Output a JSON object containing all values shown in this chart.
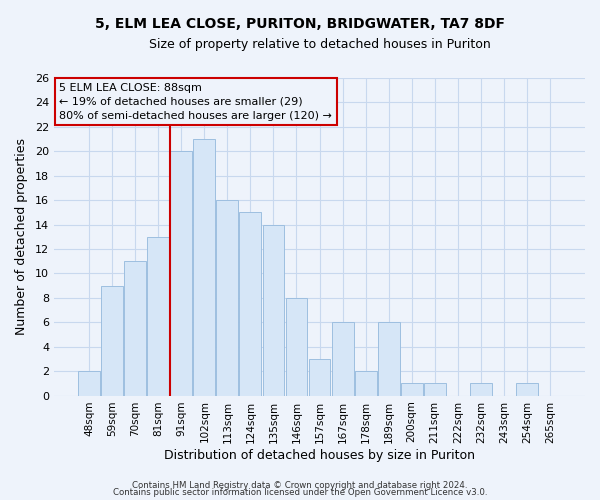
{
  "title": "5, ELM LEA CLOSE, PURITON, BRIDGWATER, TA7 8DF",
  "subtitle": "Size of property relative to detached houses in Puriton",
  "xlabel": "Distribution of detached houses by size in Puriton",
  "ylabel": "Number of detached properties",
  "bar_labels": [
    "48sqm",
    "59sqm",
    "70sqm",
    "81sqm",
    "91sqm",
    "102sqm",
    "113sqm",
    "124sqm",
    "135sqm",
    "146sqm",
    "157sqm",
    "167sqm",
    "178sqm",
    "189sqm",
    "200sqm",
    "211sqm",
    "222sqm",
    "232sqm",
    "243sqm",
    "254sqm",
    "265sqm"
  ],
  "bar_values": [
    2,
    9,
    11,
    13,
    20,
    21,
    16,
    15,
    14,
    8,
    3,
    6,
    2,
    6,
    1,
    1,
    0,
    1,
    0,
    1,
    0
  ],
  "bar_color": "#d6e6f7",
  "bar_edge_color": "#9dbfe0",
  "vline_index": 4,
  "vline_color": "#cc0000",
  "ylim": [
    0,
    26
  ],
  "yticks": [
    0,
    2,
    4,
    6,
    8,
    10,
    12,
    14,
    16,
    18,
    20,
    22,
    24,
    26
  ],
  "annotation_title": "5 ELM LEA CLOSE: 88sqm",
  "annotation_line1": "← 19% of detached houses are smaller (29)",
  "annotation_line2": "80% of semi-detached houses are larger (120) →",
  "footnote1": "Contains HM Land Registry data © Crown copyright and database right 2024.",
  "footnote2": "Contains public sector information licensed under the Open Government Licence v3.0.",
  "background_color": "#eef3fb",
  "grid_color": "#c8d8ee",
  "title_fontsize": 10,
  "subtitle_fontsize": 9
}
